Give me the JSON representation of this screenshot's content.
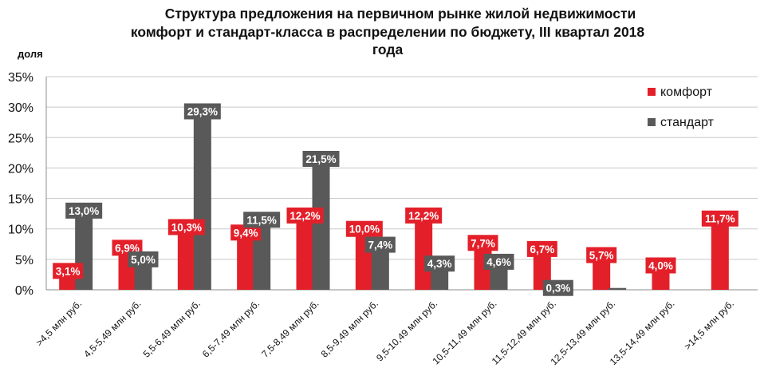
{
  "chart_data": {
    "type": "bar",
    "title_lines": [
      "Структура  предложения на первичном рынке жилой недвижимости",
      "комфорт и стандарт-класса в распределении по бюджету, III квартал 2018",
      "года"
    ],
    "ylabel": "доля",
    "ylim": [
      0,
      35
    ],
    "yticks": [
      "0%",
      "5%",
      "10%",
      "15%",
      "20%",
      "25%",
      "30%",
      "35%"
    ],
    "grid": true,
    "legend_position": "top-right",
    "categories": [
      ">4,5 млн руб.",
      "4,5-5,49 млн руб.",
      "5,5-6,49 млн руб.",
      "6,5-7,49 млн руб.",
      "7,5-8,49 млн руб.",
      "8,5-9,49 млн руб.",
      "9,5-10,49 млн руб.",
      "10,5-11,49 млн руб.",
      "11,5-12,49 млн руб.",
      "12,5-13,49 млн руб.",
      "13,5-14,49 млн руб.",
      ">14,5 млн руб."
    ],
    "series": [
      {
        "name": "комфорт",
        "color": "#e3202a",
        "values": [
          3.1,
          6.9,
          10.3,
          9.4,
          12.2,
          10.0,
          12.2,
          7.7,
          6.7,
          5.7,
          4.0,
          11.7
        ],
        "labels": [
          "3,1%",
          "6,9%",
          "10,3%",
          "9,4%",
          "12,2%",
          "10,0%",
          "12,2%",
          "7,7%",
          "6,7%",
          "5,7%",
          "4,0%",
          "11,7%"
        ]
      },
      {
        "name": "стандарт",
        "color": "#595959",
        "values": [
          13.0,
          5.0,
          29.3,
          11.5,
          21.5,
          7.4,
          4.3,
          4.6,
          0.3,
          0.3,
          null,
          null
        ],
        "labels": [
          "13,0%",
          "5,0%",
          "29,3%",
          "11,5%",
          "21,5%",
          "7,4%",
          "4,3%",
          "4,6%",
          "0,3%",
          null,
          null,
          null
        ]
      }
    ]
  }
}
